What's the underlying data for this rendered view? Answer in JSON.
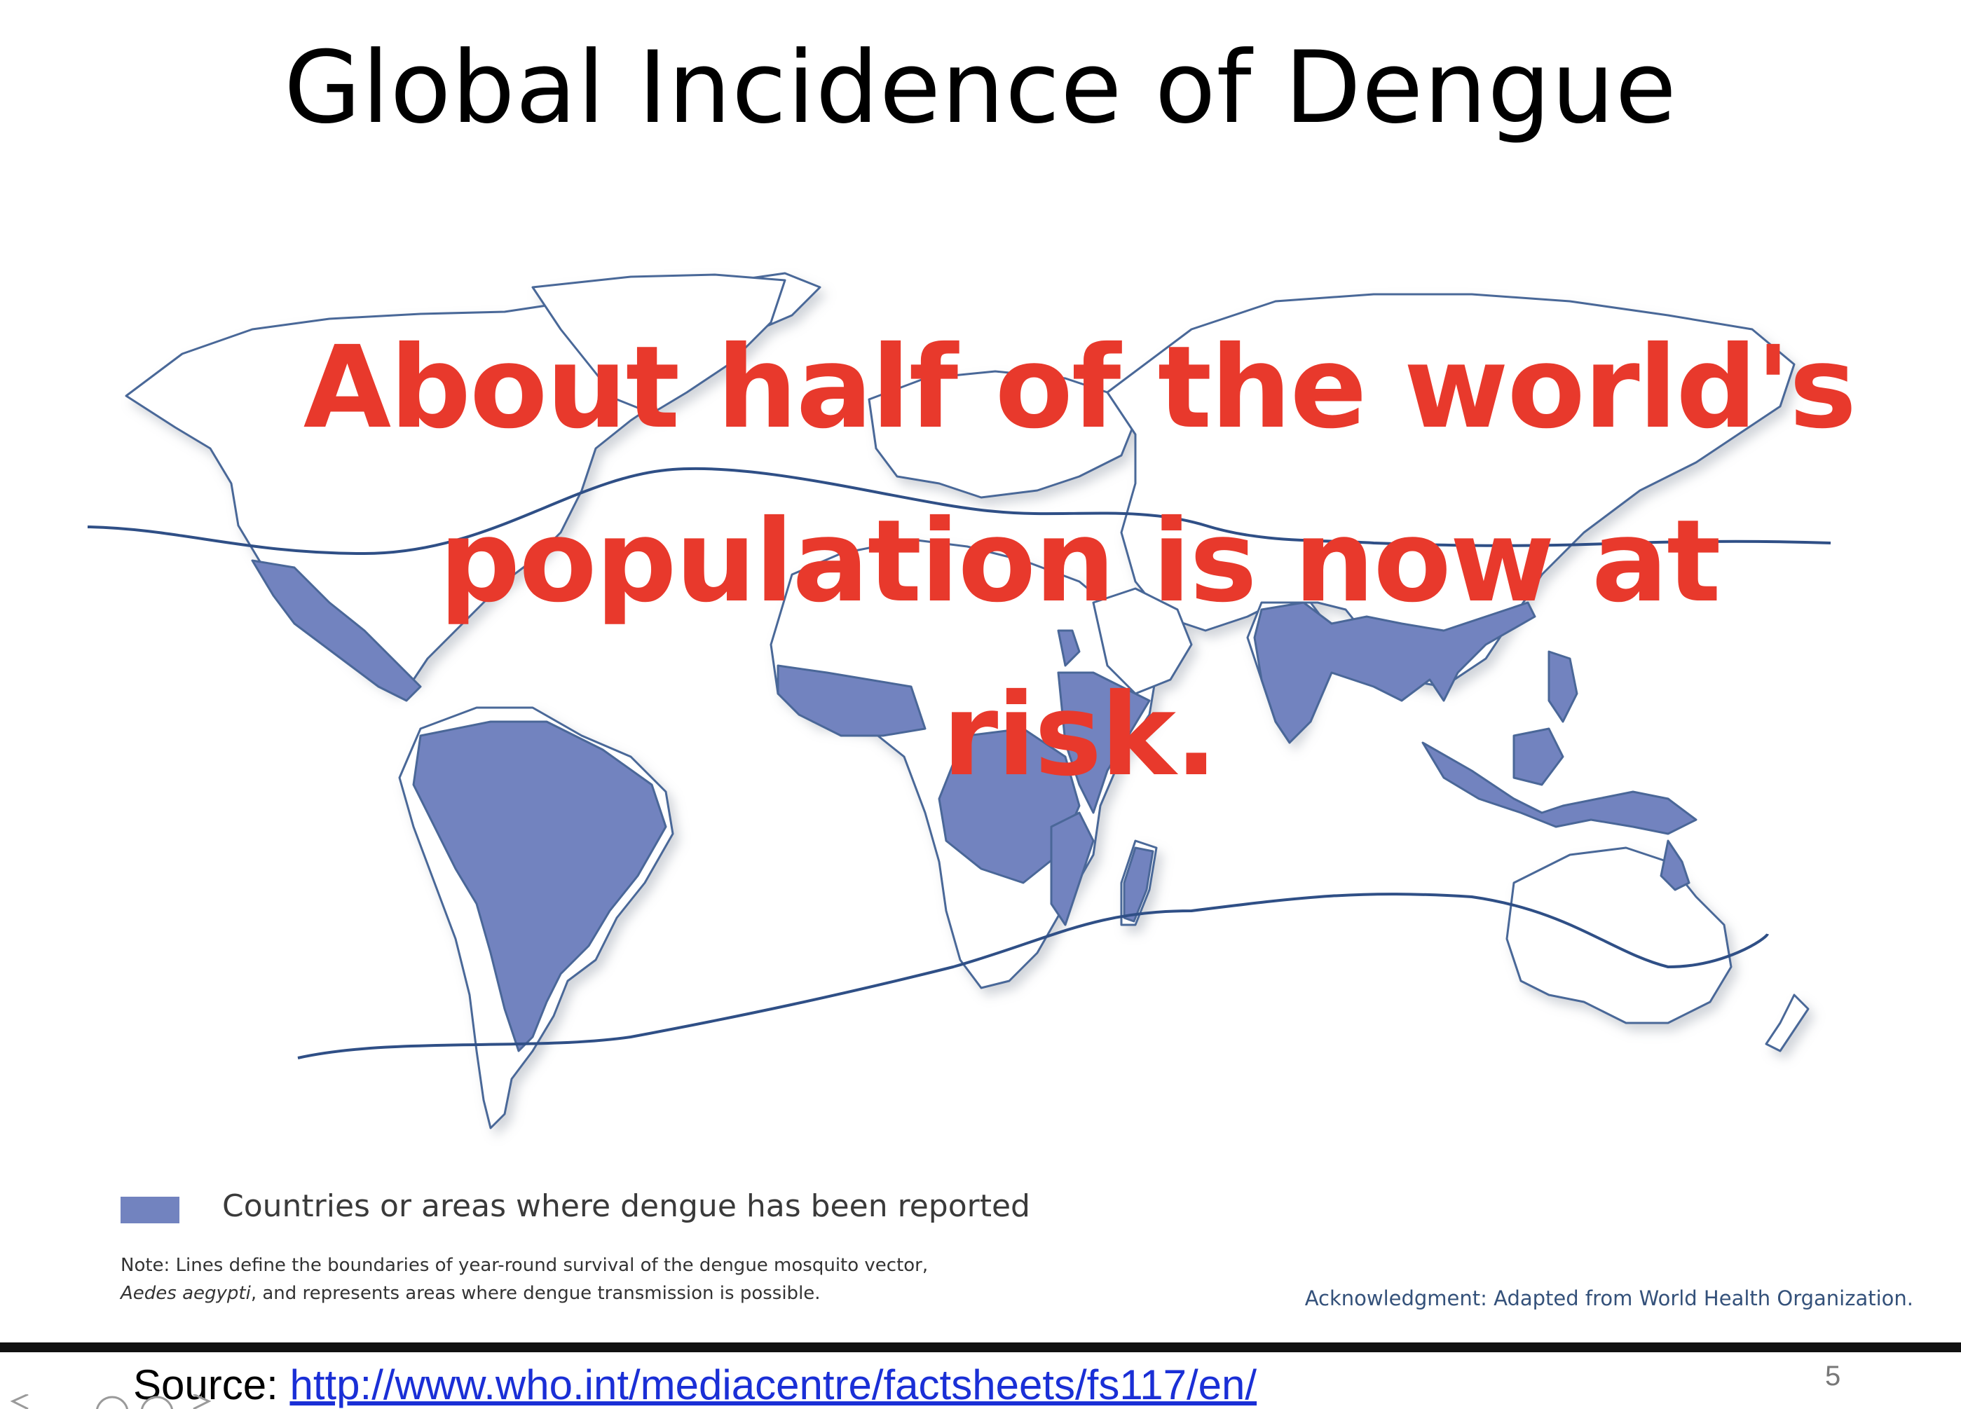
{
  "slide": {
    "title": "Global Incidence of Dengue",
    "callout_line1": "About half of the world's",
    "callout_line2": "population is now at risk.",
    "page_number": "5"
  },
  "map": {
    "legend_label": "Countries or areas where dengue has been reported",
    "note_line1": "Note: Lines define the boundaries of year-round survival of the dengue mosquito vector,",
    "note_line2_italic": "Aedes aegypti",
    "note_line2_rest": ", and represents areas where dengue transmission is possible.",
    "acknowledgment": "Acknowledgment: Adapted from World Health Organization."
  },
  "footer": {
    "source_prefix": "Source: ",
    "source_url": "http://www.who.int/mediacentre/factsheets/fs117/en/"
  },
  "colors": {
    "dengue_fill": "#7283bf",
    "callout": "#e8392c",
    "boundary_line": "#2f4f86",
    "land_outline": "#4a6798"
  }
}
